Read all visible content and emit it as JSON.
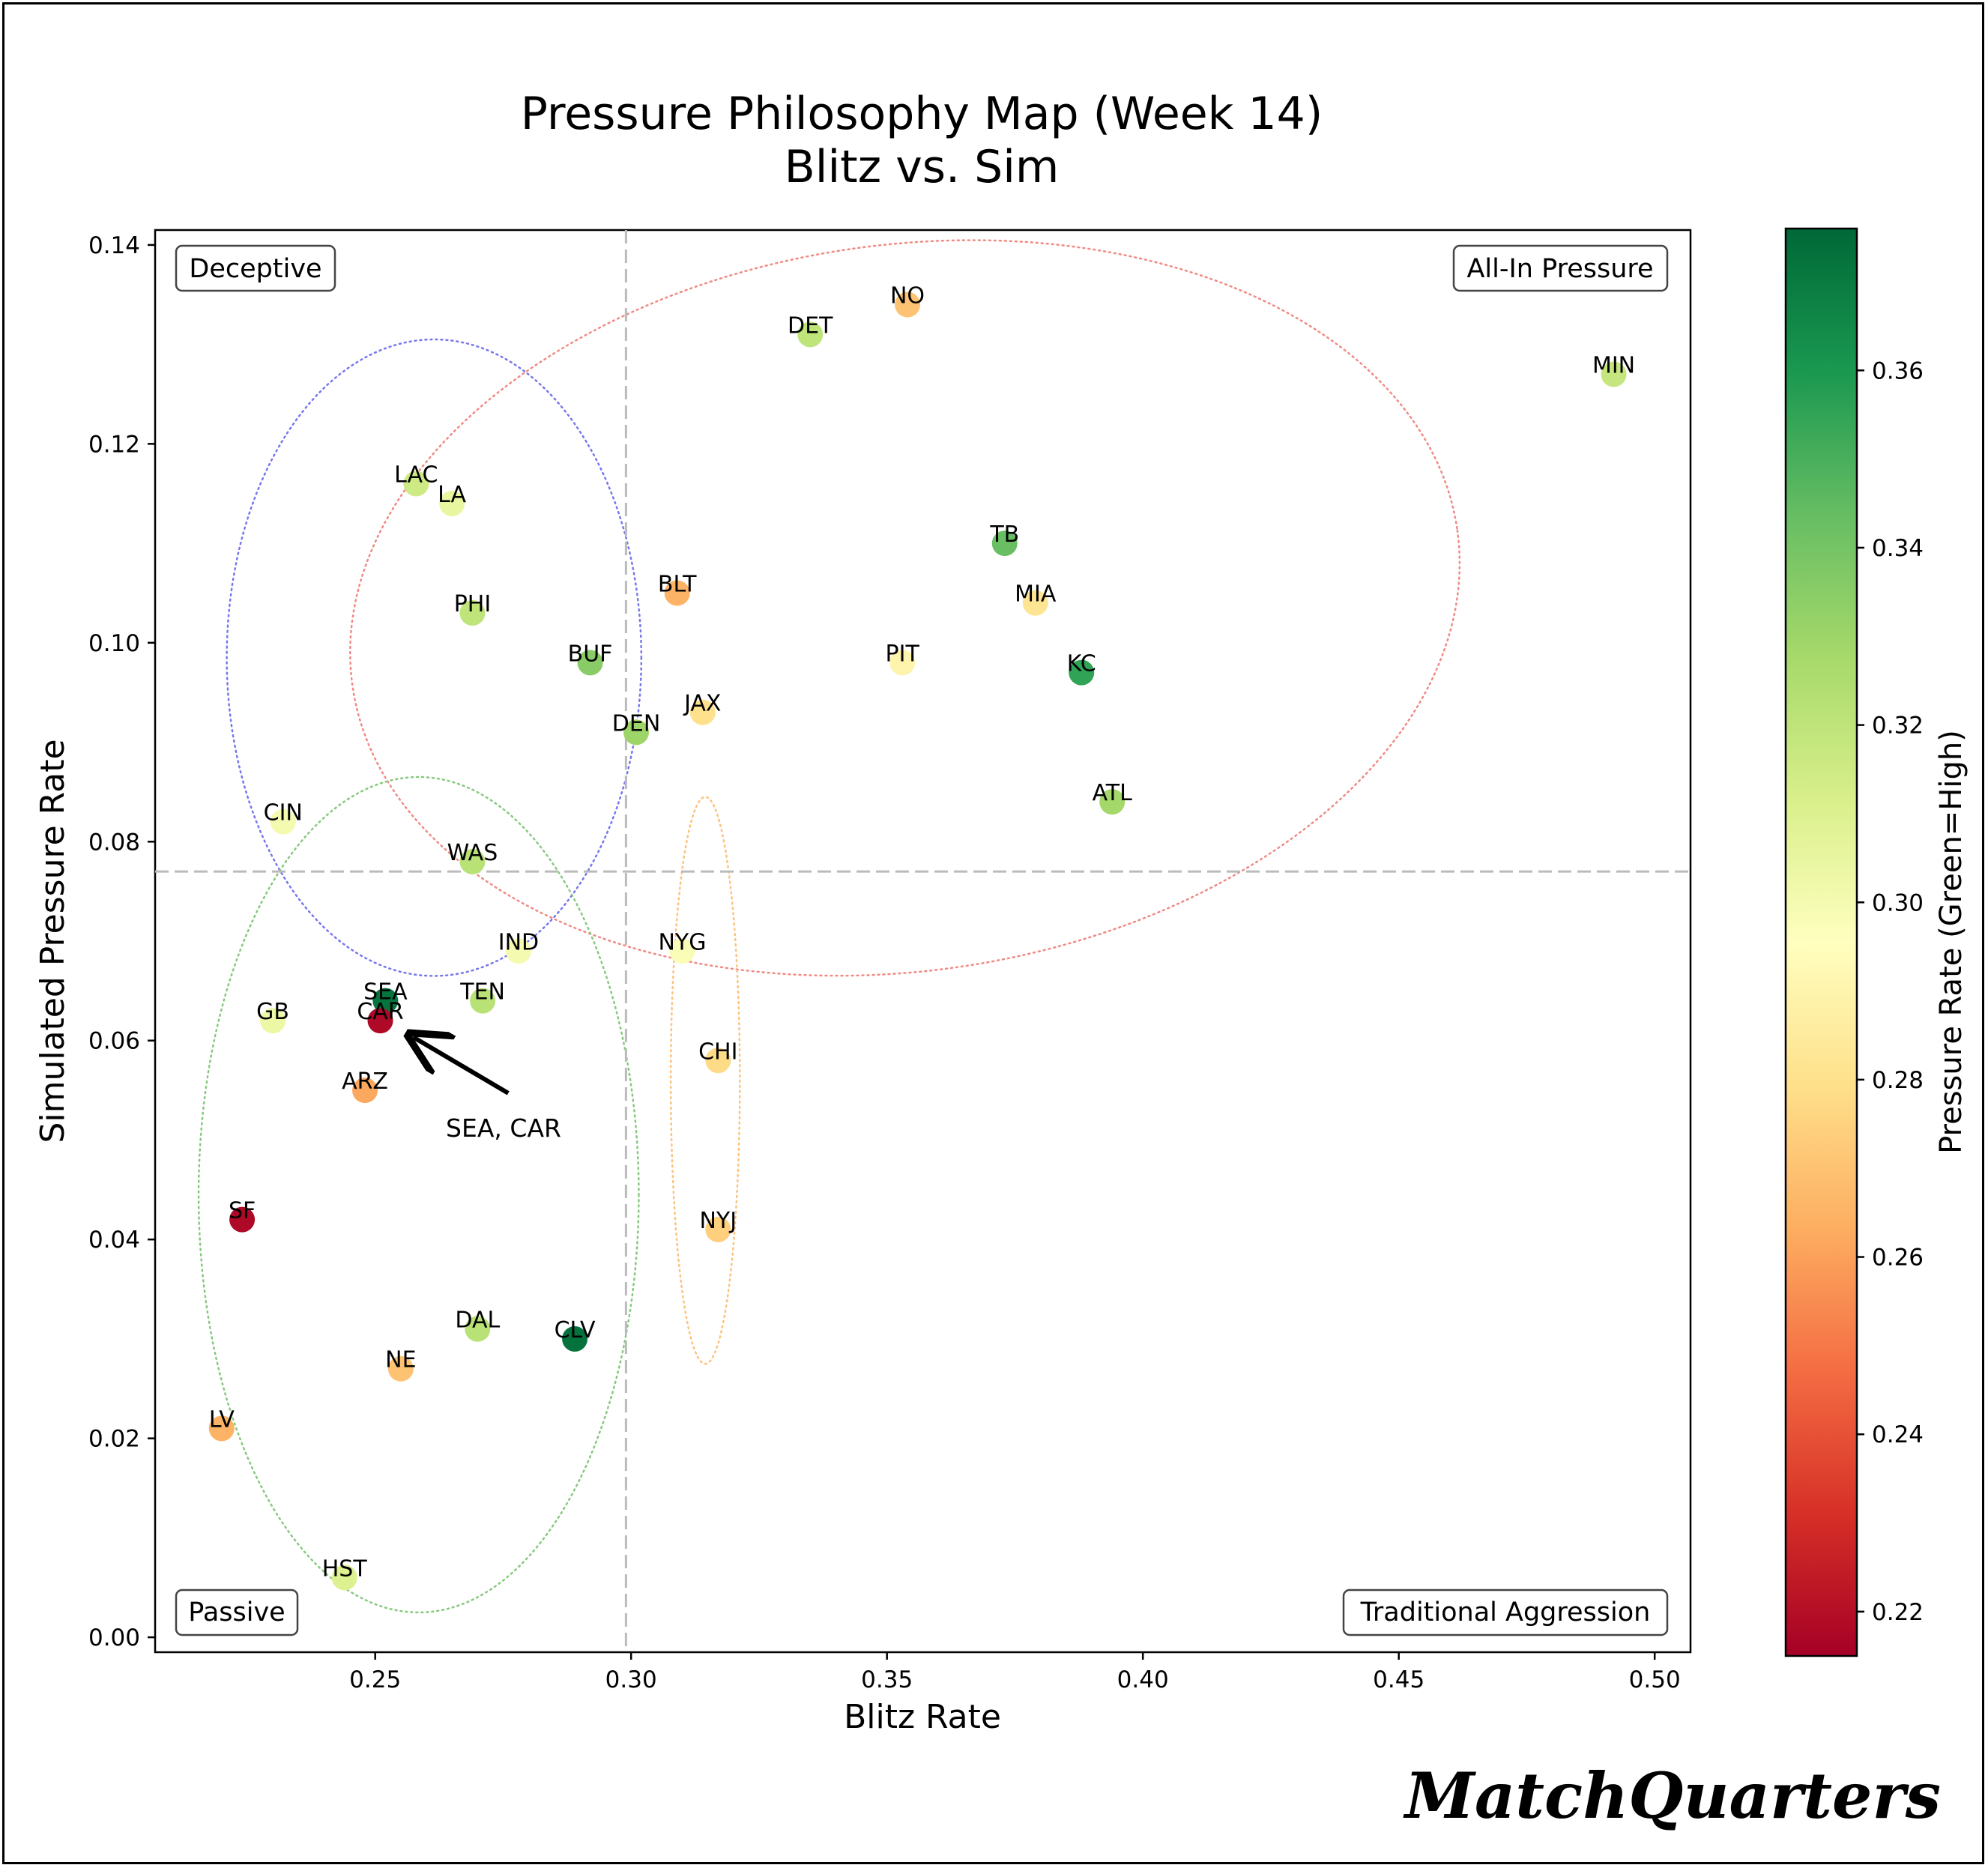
{
  "brand": "MatchQuarters",
  "chart_data": {
    "type": "scatter",
    "title": "Pressure Philosophy Map (Week 14)",
    "subtitle": "Blitz vs. Sim",
    "xlabel": "Blitz Rate",
    "ylabel": "Simulated Pressure Rate",
    "xlim": [
      0.207,
      0.507
    ],
    "ylim": [
      -0.0015,
      0.1415
    ],
    "x_ticks": [
      0.25,
      0.3,
      0.35,
      0.4,
      0.45,
      0.5
    ],
    "x_tick_labels": [
      "0.25",
      "0.30",
      "0.35",
      "0.40",
      "0.45",
      "0.50"
    ],
    "y_ticks": [
      0.0,
      0.02,
      0.04,
      0.06,
      0.08,
      0.1,
      0.12,
      0.14
    ],
    "y_tick_labels": [
      "0.00",
      "0.02",
      "0.04",
      "0.06",
      "0.08",
      "0.10",
      "0.12",
      "0.14"
    ],
    "x_divider": 0.299,
    "y_divider": 0.077,
    "colorbar": {
      "label": "Pressure Rate (Green=High)",
      "min": 0.215,
      "max": 0.376,
      "ticks": [
        0.22,
        0.24,
        0.26,
        0.28,
        0.3,
        0.32,
        0.34,
        0.36
      ],
      "tick_labels": [
        "0.22",
        "0.24",
        "0.26",
        "0.28",
        "0.30",
        "0.32",
        "0.34",
        "0.36"
      ],
      "colormap": "RdYlGn"
    },
    "quadrant_labels": {
      "top_left": "Deceptive",
      "top_right": "All-In Pressure",
      "bottom_left": "Passive",
      "bottom_right": "Traditional Aggression"
    },
    "annotation": {
      "text": "SEA, CAR",
      "target": [
        0.251,
        0.062
      ],
      "text_pos": [
        0.276,
        0.052
      ]
    },
    "clusters": [
      {
        "color": "#7777ee",
        "cx": 0.2615,
        "cy": 0.0985,
        "w": 0.081,
        "h": 0.064,
        "angle": 0
      },
      {
        "color": "#f08a84",
        "cx": 0.3535,
        "cy": 0.1035,
        "w": 0.218,
        "h": 0.073,
        "angle": -8
      },
      {
        "color": "#86c97e",
        "cx": 0.2585,
        "cy": 0.0445,
        "w": 0.086,
        "h": 0.084,
        "angle": 0
      },
      {
        "color": "#fbc380",
        "cx": 0.3145,
        "cy": 0.056,
        "w": 0.0135,
        "h": 0.057,
        "angle": 0
      }
    ],
    "points": [
      {
        "team": "NO",
        "x": 0.354,
        "y": 0.134,
        "pressure": 0.27
      },
      {
        "team": "DET",
        "x": 0.335,
        "y": 0.131,
        "pressure": 0.32
      },
      {
        "team": "MIN",
        "x": 0.492,
        "y": 0.127,
        "pressure": 0.318
      },
      {
        "team": "LAC",
        "x": 0.258,
        "y": 0.116,
        "pressure": 0.315
      },
      {
        "team": "LA",
        "x": 0.265,
        "y": 0.114,
        "pressure": 0.305
      },
      {
        "team": "TB",
        "x": 0.373,
        "y": 0.11,
        "pressure": 0.343
      },
      {
        "team": "BLT",
        "x": 0.309,
        "y": 0.105,
        "pressure": 0.265
      },
      {
        "team": "MIA",
        "x": 0.379,
        "y": 0.104,
        "pressure": 0.282
      },
      {
        "team": "PHI",
        "x": 0.269,
        "y": 0.103,
        "pressure": 0.32
      },
      {
        "team": "BUF",
        "x": 0.292,
        "y": 0.098,
        "pressure": 0.335
      },
      {
        "team": "PIT",
        "x": 0.353,
        "y": 0.098,
        "pressure": 0.29
      },
      {
        "team": "KC",
        "x": 0.388,
        "y": 0.097,
        "pressure": 0.355
      },
      {
        "team": "JAX",
        "x": 0.314,
        "y": 0.093,
        "pressure": 0.28
      },
      {
        "team": "DEN",
        "x": 0.301,
        "y": 0.091,
        "pressure": 0.33
      },
      {
        "team": "ATL",
        "x": 0.394,
        "y": 0.084,
        "pressure": 0.328
      },
      {
        "team": "CIN",
        "x": 0.232,
        "y": 0.082,
        "pressure": 0.3
      },
      {
        "team": "WAS",
        "x": 0.269,
        "y": 0.078,
        "pressure": 0.322
      },
      {
        "team": "IND",
        "x": 0.278,
        "y": 0.069,
        "pressure": 0.3
      },
      {
        "team": "NYG",
        "x": 0.31,
        "y": 0.069,
        "pressure": 0.298
      },
      {
        "team": "TEN",
        "x": 0.271,
        "y": 0.064,
        "pressure": 0.322
      },
      {
        "team": "SEA",
        "x": 0.252,
        "y": 0.064,
        "pressure": 0.372
      },
      {
        "team": "GB",
        "x": 0.23,
        "y": 0.062,
        "pressure": 0.303
      },
      {
        "team": "CAR",
        "x": 0.251,
        "y": 0.062,
        "pressure": 0.218
      },
      {
        "team": "CHI",
        "x": 0.317,
        "y": 0.058,
        "pressure": 0.278
      },
      {
        "team": "ARZ",
        "x": 0.248,
        "y": 0.055,
        "pressure": 0.262
      },
      {
        "team": "SF",
        "x": 0.224,
        "y": 0.042,
        "pressure": 0.218
      },
      {
        "team": "NYJ",
        "x": 0.317,
        "y": 0.041,
        "pressure": 0.274
      },
      {
        "team": "DAL",
        "x": 0.27,
        "y": 0.031,
        "pressure": 0.322
      },
      {
        "team": "CLV",
        "x": 0.289,
        "y": 0.03,
        "pressure": 0.373
      },
      {
        "team": "NE",
        "x": 0.255,
        "y": 0.027,
        "pressure": 0.27
      },
      {
        "team": "LV",
        "x": 0.22,
        "y": 0.021,
        "pressure": 0.265
      },
      {
        "team": "HST",
        "x": 0.244,
        "y": 0.006,
        "pressure": 0.31
      }
    ]
  }
}
